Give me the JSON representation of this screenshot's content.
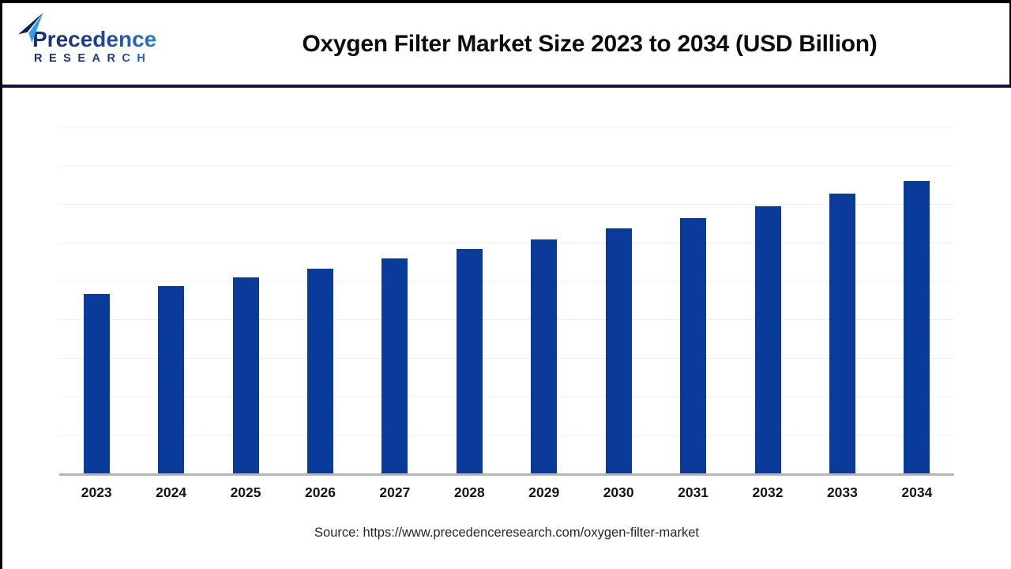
{
  "brand": {
    "name": "Precedence",
    "subtitle": "RESEARCH"
  },
  "header": {
    "title": "Oxygen Filter Market Size 2023 to 2034 (USD Billion)"
  },
  "footer": {
    "source": "Source: https://www.precedenceresearch.com/oxygen-filter-market"
  },
  "colors": {
    "bar": "#0b3b9a",
    "header_divider": "#131347",
    "frame_border": "#000000",
    "axis_line": "#b5b5b5",
    "gridline": "#eceff5",
    "title_text": "#0d0d0d",
    "xlabel_text": "#141414",
    "source_text": "#272727",
    "logo_navy": "#1b2a6b",
    "logo_blue": "#2e9bf0"
  },
  "chart_data": {
    "type": "bar",
    "title": "Oxygen Filter Market Size 2023 to 2034 (USD Billion)",
    "unit": "USD Billion",
    "categories": [
      "2023",
      "2024",
      "2025",
      "2026",
      "2027",
      "2028",
      "2029",
      "2030",
      "2031",
      "2032",
      "2033",
      "2034"
    ],
    "values": [
      2.35,
      2.45,
      2.56,
      2.68,
      2.81,
      2.93,
      3.06,
      3.2,
      3.34,
      3.49,
      3.66,
      3.82
    ],
    "xlabel": "",
    "ylabel": "",
    "ylim": [
      0,
      5
    ],
    "gridline_step": 0.5,
    "grid": true,
    "y_axis_labels_visible": false,
    "legend_position": "none",
    "bar_color": "#0b3b9a",
    "note": "y-axis unlabeled in source image; values estimated from gridlines (0.5 per gridline)"
  }
}
